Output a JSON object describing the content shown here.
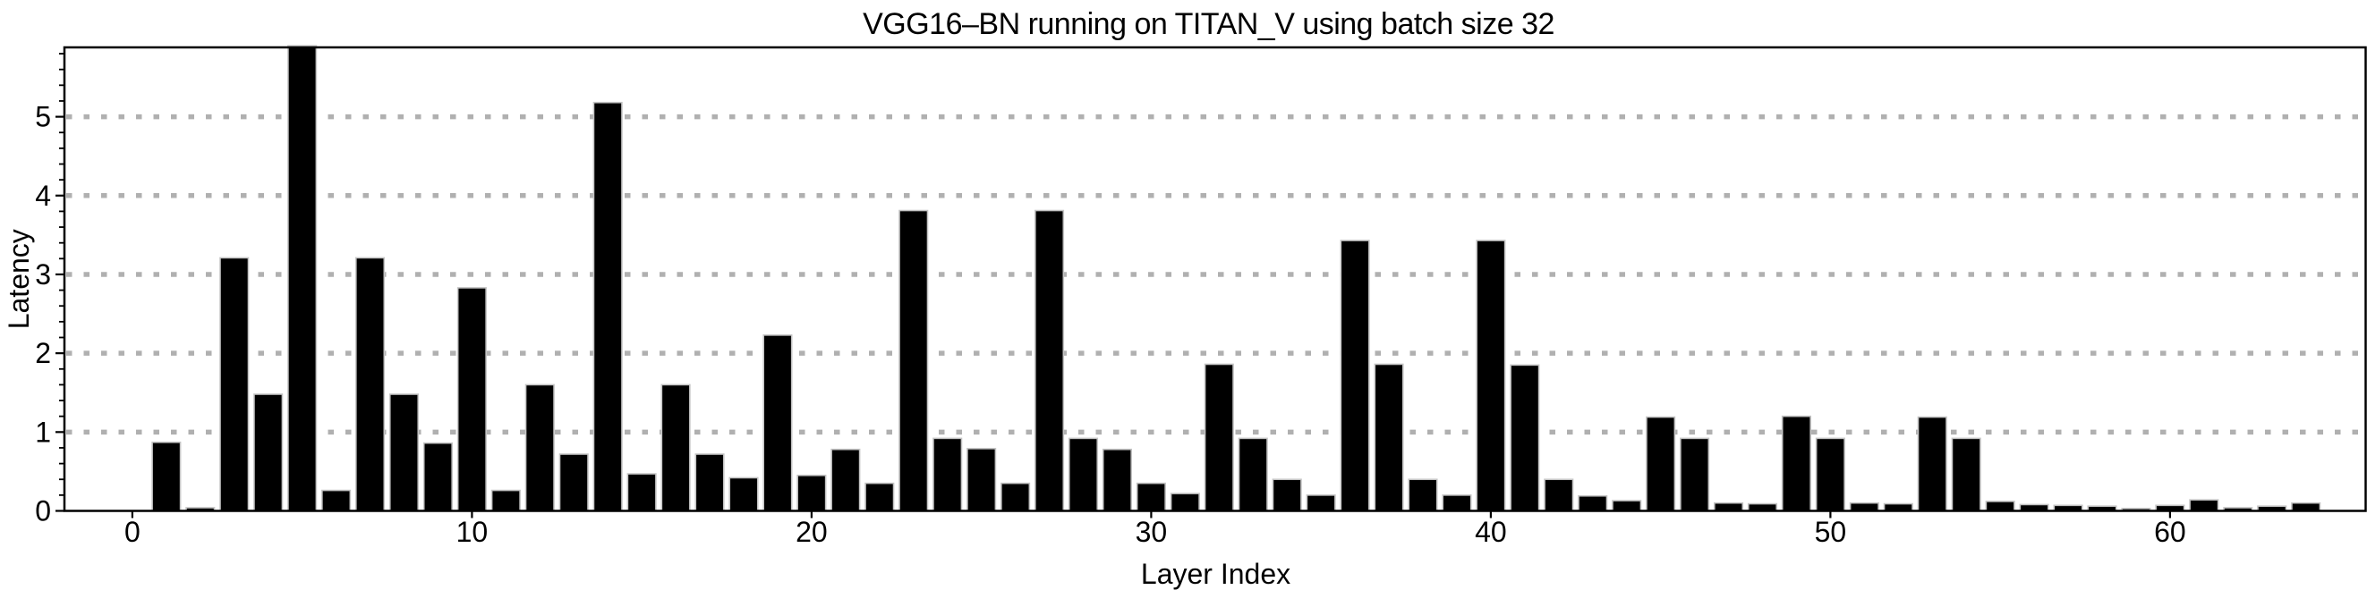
{
  "page": {
    "background": "#ffffff",
    "text_color": "#000000"
  },
  "chart_data": {
    "type": "bar",
    "title": "VGG16–BN running on TITAN_V using batch size 32",
    "xlabel": "Layer Index",
    "ylabel": "Latency",
    "series_name": "Latency",
    "x_ticks": [
      0,
      10,
      20,
      30,
      40,
      50,
      60
    ],
    "y_ticks": [
      0,
      1,
      2,
      3,
      4,
      5
    ],
    "y_minor_tick_step": 0.2,
    "xlim": [
      -2,
      65.8
    ],
    "ylim": [
      0,
      5.88
    ],
    "grid": {
      "axis": "y",
      "style": "dotted",
      "color": "#b0b0b0",
      "on_values": [
        1,
        2,
        3,
        4,
        5
      ]
    },
    "legend": "none",
    "bar_color": "#000000",
    "bar_edge_color": "#c4c4c4",
    "axis_color": "#000000",
    "x": [
      1,
      2,
      3,
      4,
      5,
      6,
      7,
      8,
      9,
      10,
      11,
      12,
      13,
      14,
      15,
      16,
      17,
      18,
      19,
      20,
      21,
      22,
      23,
      24,
      25,
      26,
      27,
      28,
      29,
      30,
      31,
      32,
      33,
      34,
      35,
      36,
      37,
      38,
      39,
      40,
      41,
      42,
      43,
      44,
      45,
      46,
      47,
      48,
      49,
      50,
      51,
      52,
      53,
      54,
      55,
      56,
      57,
      58,
      59,
      60,
      61,
      62,
      63,
      64
    ],
    "values": [
      0.87,
      0.04,
      3.21,
      1.48,
      5.9,
      0.26,
      3.21,
      1.48,
      0.86,
      2.83,
      0.26,
      1.6,
      0.72,
      5.18,
      0.47,
      1.6,
      0.72,
      0.42,
      2.23,
      0.45,
      0.78,
      0.35,
      3.81,
      0.92,
      0.79,
      0.35,
      3.81,
      0.92,
      0.78,
      0.35,
      0.22,
      1.86,
      0.92,
      0.4,
      0.2,
      3.43,
      1.86,
      0.4,
      0.2,
      3.43,
      1.85,
      0.4,
      0.19,
      0.13,
      1.19,
      0.92,
      0.1,
      0.09,
      1.2,
      0.92,
      0.1,
      0.09,
      1.19,
      0.92,
      0.12,
      0.08,
      0.07,
      0.06,
      0.03,
      0.07,
      0.14,
      0.04,
      0.06,
      0.1
    ]
  }
}
